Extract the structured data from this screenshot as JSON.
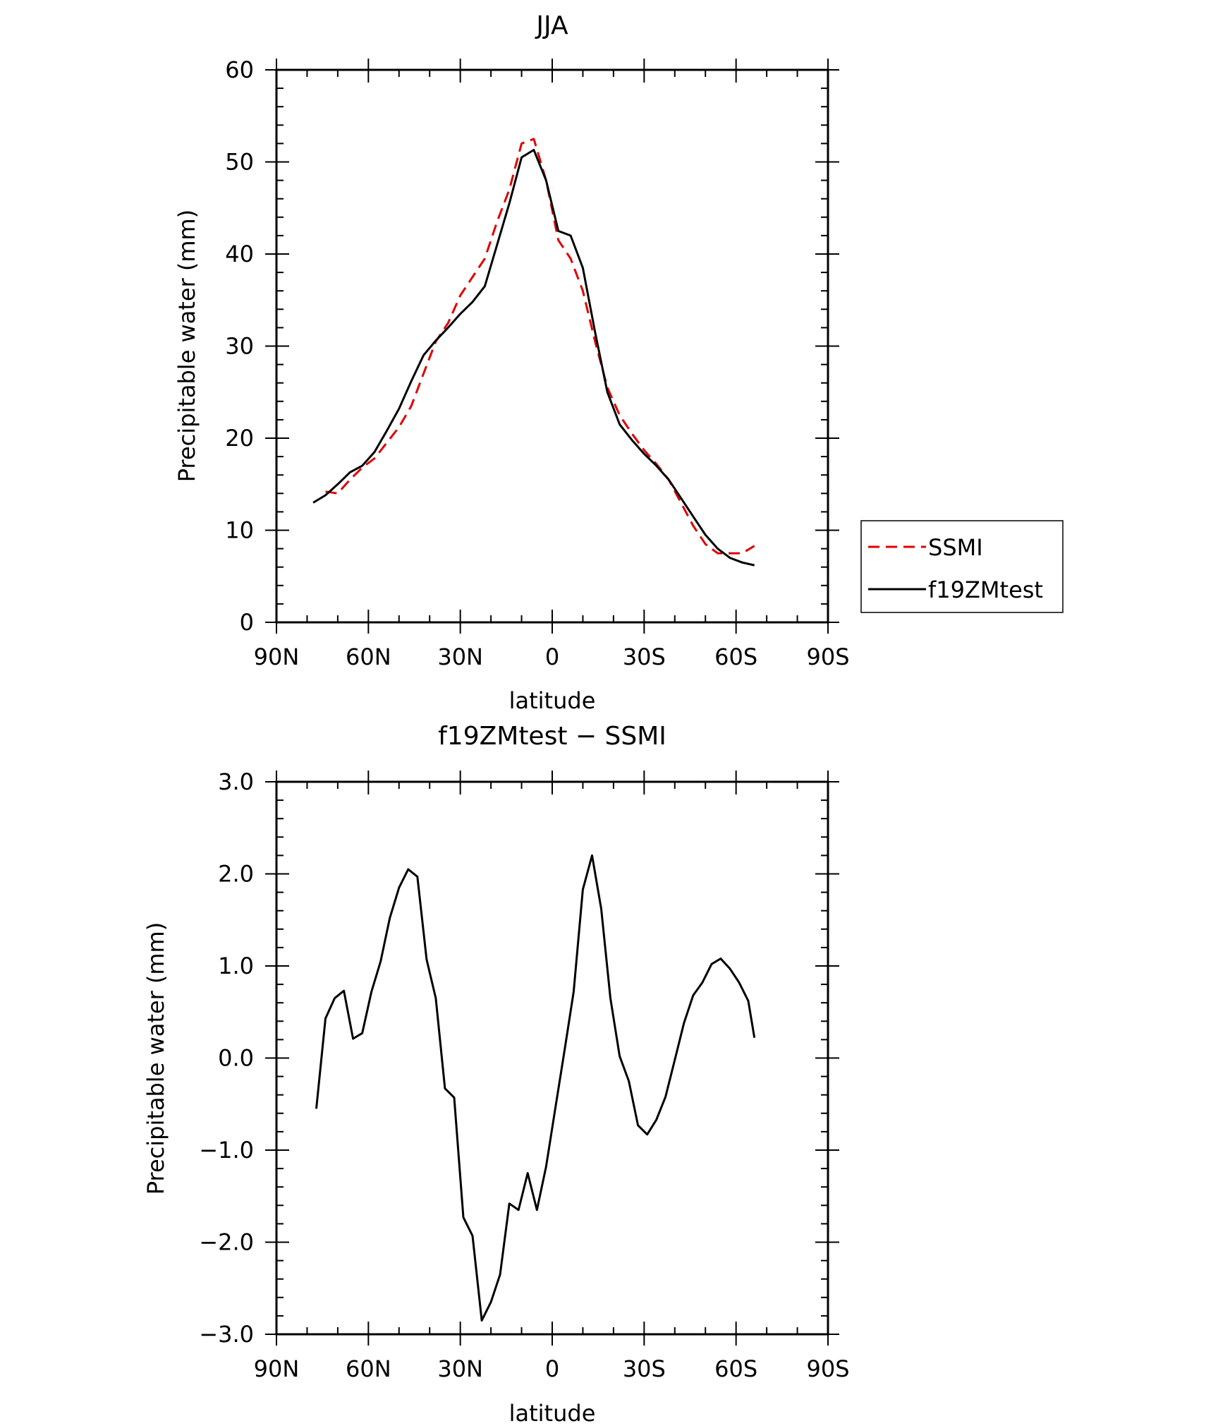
{
  "chart_data": [
    {
      "type": "line",
      "title": "JJA",
      "xlabel": "latitude",
      "ylabel": "Precipitable water (mm)",
      "xlim": [
        90,
        -90
      ],
      "ylim": [
        0,
        60
      ],
      "x_ticks": [
        90,
        60,
        30,
        0,
        -30,
        -60,
        -90
      ],
      "x_tick_labels": [
        "90N",
        "60N",
        "30N",
        "0",
        "30S",
        "60S",
        "90S"
      ],
      "y_ticks": [
        0,
        10,
        20,
        30,
        40,
        50,
        60
      ],
      "y_tick_labels": [
        "0",
        "10",
        "20",
        "30",
        "40",
        "50",
        "60"
      ],
      "grid": false,
      "legend_placement": "right",
      "series": [
        {
          "name": "SSMI",
          "color": "#e00000",
          "style": "dashed",
          "x": [
            74,
            70,
            66,
            62,
            58,
            54,
            50,
            46,
            42,
            38,
            34,
            30,
            26,
            22,
            18,
            14,
            10,
            6,
            2,
            -2,
            -6,
            -10,
            -14,
            -18,
            -22,
            -26,
            -30,
            -34,
            -38,
            -42,
            -46,
            -50,
            -54,
            -58,
            -62,
            -66
          ],
          "y": [
            14.2,
            14.0,
            15.5,
            16.8,
            17.8,
            19.5,
            21.2,
            23.5,
            27.0,
            30.5,
            32.5,
            35.5,
            37.5,
            39.5,
            43.5,
            47.0,
            52.0,
            52.5,
            48.0,
            41.5,
            39.5,
            36.0,
            30.5,
            25.5,
            22.5,
            20.5,
            18.7,
            17.2,
            15.5,
            13.0,
            10.5,
            8.5,
            7.5,
            7.5,
            7.5,
            8.3
          ]
        },
        {
          "name": "f19ZMtest",
          "color": "#000000",
          "style": "solid",
          "x": [
            78,
            74,
            70,
            66,
            62,
            58,
            54,
            50,
            46,
            42,
            38,
            34,
            30,
            26,
            22,
            18,
            14,
            10,
            6,
            2,
            -2,
            -6,
            -10,
            -14,
            -18,
            -22,
            -26,
            -30,
            -34,
            -38,
            -42,
            -46,
            -50,
            -54,
            -58,
            -62,
            -66
          ],
          "y": [
            13.0,
            13.8,
            15.0,
            16.3,
            17.0,
            18.5,
            20.8,
            23.2,
            26.2,
            29.0,
            30.6,
            32.0,
            33.5,
            34.8,
            36.5,
            41.0,
            45.5,
            50.5,
            51.3,
            48.0,
            42.5,
            42.0,
            38.5,
            31.5,
            25.0,
            21.5,
            19.8,
            18.3,
            17.0,
            15.5,
            13.5,
            11.5,
            9.5,
            8.0,
            7.0,
            6.5,
            6.2
          ]
        }
      ]
    },
    {
      "type": "line",
      "title": "f19ZMtest − SSMI",
      "xlabel": "latitude",
      "ylabel": "Precipitable water (mm)",
      "xlim": [
        90,
        -90
      ],
      "ylim": [
        -3,
        3
      ],
      "x_ticks": [
        90,
        60,
        30,
        0,
        -30,
        -60,
        -90
      ],
      "x_tick_labels": [
        "90N",
        "60N",
        "30N",
        "0",
        "30S",
        "60S",
        "90S"
      ],
      "y_ticks": [
        -3,
        -2,
        -1,
        0,
        1,
        2,
        3
      ],
      "y_tick_labels": [
        "−3.0",
        "−2.0",
        "−1.0",
        "0.0",
        "1.0",
        "2.0",
        "3.0"
      ],
      "grid": false,
      "series": [
        {
          "color": "#000000",
          "style": "solid",
          "x": [
            77,
            74,
            71,
            68,
            65,
            62,
            59,
            56,
            53,
            50,
            47,
            44,
            41,
            38,
            35,
            32,
            29,
            26,
            23,
            20,
            17,
            14,
            11,
            8,
            5,
            2,
            -1,
            -4,
            -7,
            -10,
            -13,
            -16,
            -19,
            -22,
            -25,
            -28,
            -31,
            -34,
            -37,
            -40,
            -43,
            -46,
            -49,
            -52,
            -55,
            -58,
            -61,
            -64,
            -66
          ],
          "y": [
            -0.55,
            0.43,
            0.65,
            0.73,
            0.21,
            0.27,
            0.72,
            1.05,
            1.52,
            1.85,
            2.05,
            1.97,
            1.07,
            0.65,
            -0.33,
            -0.43,
            -1.73,
            -1.93,
            -2.85,
            -2.65,
            -2.35,
            -1.58,
            -1.65,
            -1.25,
            -1.65,
            -1.18,
            -0.55,
            0.08,
            0.72,
            1.83,
            2.2,
            1.62,
            0.65,
            0.02,
            -0.25,
            -0.73,
            -0.83,
            -0.67,
            -0.42,
            -0.02,
            0.38,
            0.68,
            0.82,
            1.02,
            1.08,
            0.97,
            0.82,
            0.62,
            0.22
          ]
        }
      ]
    }
  ]
}
